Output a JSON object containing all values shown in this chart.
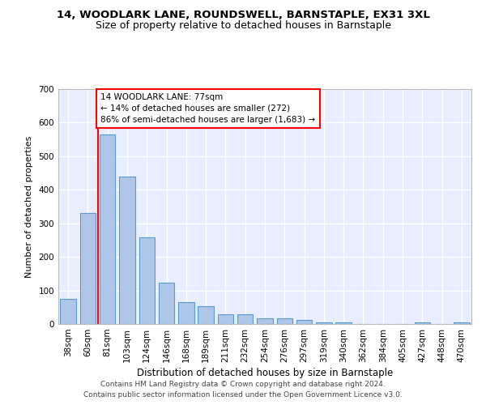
{
  "title_line1": "14, WOODLARK LANE, ROUNDSWELL, BARNSTAPLE, EX31 3XL",
  "title_line2": "Size of property relative to detached houses in Barnstaple",
  "xlabel": "Distribution of detached houses by size in Barnstaple",
  "ylabel": "Number of detached properties",
  "categories": [
    "38sqm",
    "60sqm",
    "81sqm",
    "103sqm",
    "124sqm",
    "146sqm",
    "168sqm",
    "189sqm",
    "211sqm",
    "232sqm",
    "254sqm",
    "276sqm",
    "297sqm",
    "319sqm",
    "340sqm",
    "362sqm",
    "384sqm",
    "405sqm",
    "427sqm",
    "448sqm",
    "470sqm"
  ],
  "values": [
    75,
    330,
    565,
    440,
    258,
    123,
    65,
    53,
    28,
    28,
    17,
    17,
    12,
    5,
    5,
    0,
    0,
    0,
    5,
    0,
    5
  ],
  "bar_color": "#aec6e8",
  "bar_edge_color": "#5b9bd5",
  "vline_x": 1.5,
  "vline_color": "red",
  "annotation_text": "14 WOODLARK LANE: 77sqm\n← 14% of detached houses are smaller (272)\n86% of semi-detached houses are larger (1,683) →",
  "annotation_box_color": "white",
  "annotation_box_edge_color": "red",
  "ylim": [
    0,
    700
  ],
  "yticks": [
    0,
    100,
    200,
    300,
    400,
    500,
    600,
    700
  ],
  "footer_line1": "Contains HM Land Registry data © Crown copyright and database right 2024.",
  "footer_line2": "Contains public sector information licensed under the Open Government Licence v3.0.",
  "background_color": "#e8eeff",
  "grid_color": "#ffffff",
  "title_fontsize": 9.5,
  "subtitle_fontsize": 9,
  "xlabel_fontsize": 8.5,
  "ylabel_fontsize": 8,
  "tick_fontsize": 7.5,
  "footer_fontsize": 6.5,
  "annotation_fontsize": 7.5
}
